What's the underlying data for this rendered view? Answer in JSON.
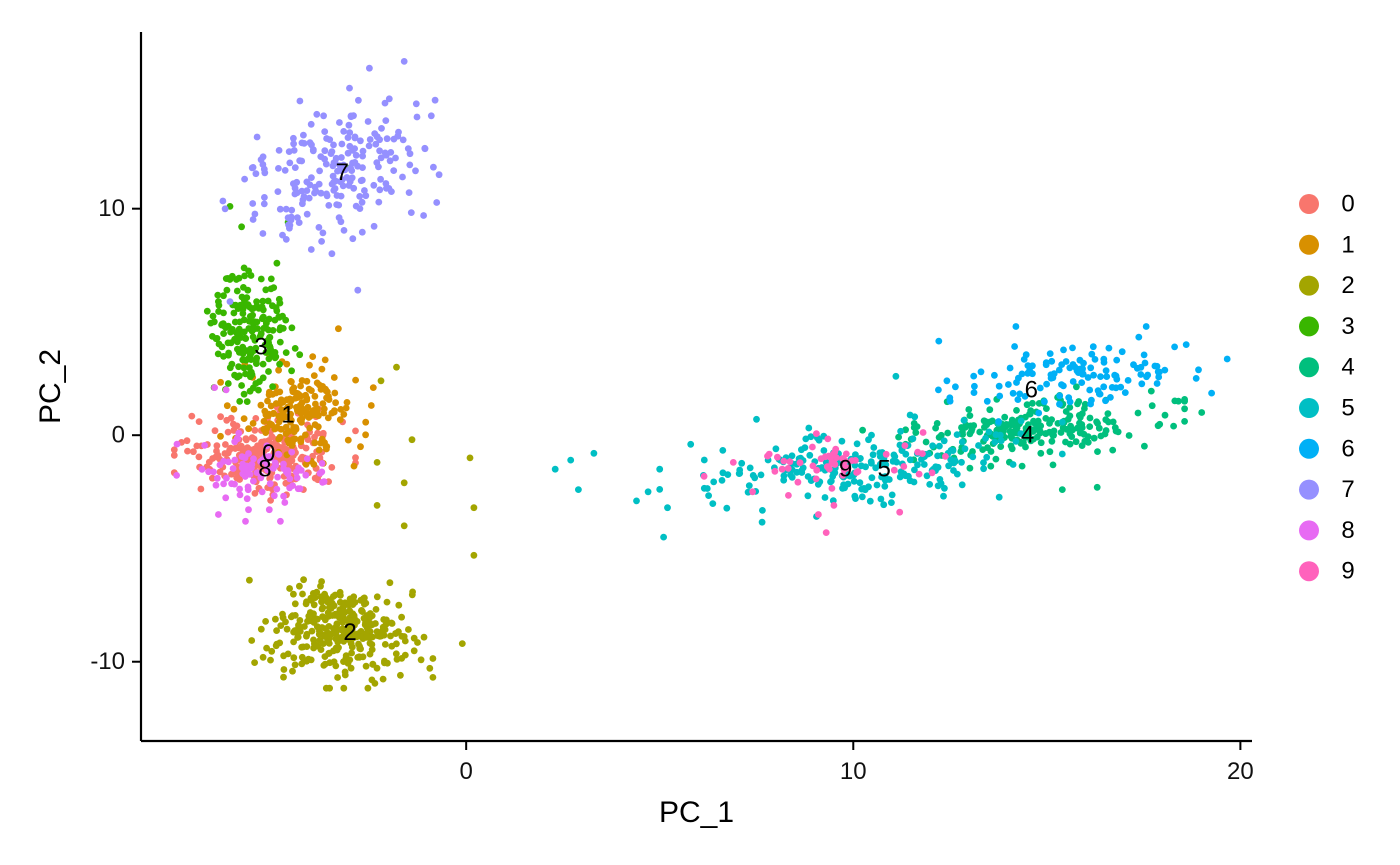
{
  "chart_data": {
    "type": "scatter",
    "xlabel": "PC_1",
    "ylabel": "PC_2",
    "xlim": [
      -8.4,
      20.3
    ],
    "ylim": [
      -13.5,
      17.8
    ],
    "x_ticks": [
      0,
      10,
      20
    ],
    "y_ticks": [
      -10,
      0,
      10
    ],
    "x_tick_labels": [
      "0",
      "10",
      "20"
    ],
    "y_tick_labels": [
      "-10",
      "0",
      "10"
    ],
    "grid": false,
    "legend_position": "right",
    "series": [
      {
        "name": "0",
        "color": "#F8766D",
        "center": [
          -5.2,
          -0.8
        ],
        "spread": [
          0.9,
          0.8
        ],
        "count": 260,
        "label_pos": [
          -5.1,
          -0.8
        ],
        "outliers": [
          [
            -6.9,
            0.6
          ],
          [
            -7.2,
            -0.7
          ],
          [
            -6.7,
            -1.4
          ],
          [
            -3.9,
            -1.9
          ]
        ]
      },
      {
        "name": "1",
        "color": "#D89000",
        "center": [
          -4.4,
          1.0
        ],
        "spread": [
          0.75,
          0.95
        ],
        "count": 180,
        "label_pos": [
          -4.6,
          0.9
        ],
        "outliers": [
          [
            -3.3,
            4.7
          ],
          [
            -3.1,
            1.2
          ],
          [
            -2.4,
            2.1
          ],
          [
            -3.6,
            -0.5
          ],
          [
            -5.1,
            3.6
          ]
        ]
      },
      {
        "name": "2",
        "color": "#A3A500",
        "center": [
          -3.2,
          -8.7
        ],
        "spread": [
          0.9,
          0.95
        ],
        "count": 320,
        "label_pos": [
          -3.0,
          -8.7
        ],
        "outliers": [
          [
            -5.6,
            -6.4
          ],
          [
            -2.3,
            -3.1
          ],
          [
            -1.4,
            -0.2
          ],
          [
            0.1,
            -1.0
          ],
          [
            -1.6,
            -2.1
          ],
          [
            0.2,
            -3.2
          ],
          [
            0.2,
            -5.3
          ],
          [
            -2.2,
            2.4
          ],
          [
            -1.8,
            3.0
          ],
          [
            -2.3,
            -1.2
          ],
          [
            -1.6,
            -4.0
          ],
          [
            -0.1,
            -9.2
          ],
          [
            -1.7,
            -10.6
          ]
        ]
      },
      {
        "name": "3",
        "color": "#39B600",
        "center": [
          -5.6,
          4.5
        ],
        "spread": [
          0.5,
          1.3
        ],
        "count": 200,
        "label_pos": [
          -5.3,
          3.9
        ],
        "outliers": [
          [
            -6.1,
            10.1
          ],
          [
            -5.8,
            9.2
          ],
          [
            -6.4,
            5.9
          ],
          [
            -4.6,
            9.4
          ],
          [
            -3.0,
            11.8
          ]
        ]
      },
      {
        "name": "4",
        "color": "#00BF7D",
        "center": [
          14.4,
          0.2
        ],
        "spread": [
          1.6,
          0.65
        ],
        "count": 230,
        "label_pos": [
          14.5,
          0.0
        ],
        "outliers": [
          [
            19.0,
            1.0
          ],
          [
            12.6,
            -1.0
          ],
          [
            15.4,
            -2.4
          ],
          [
            18.4,
            1.5
          ],
          [
            16.3,
            -2.3
          ]
        ]
      },
      {
        "name": "5",
        "color": "#00BFC4",
        "center": [
          10.2,
          -1.3
        ],
        "spread": [
          2.0,
          0.8
        ],
        "count": 240,
        "label_pos": [
          10.8,
          -1.5
        ],
        "outliers": [
          [
            2.3,
            -1.5
          ],
          [
            2.7,
            -1.1
          ],
          [
            2.9,
            -2.4
          ],
          [
            3.3,
            -0.8
          ],
          [
            4.4,
            -2.9
          ],
          [
            5.1,
            -4.5
          ],
          [
            4.7,
            -2.5
          ],
          [
            5.2,
            -3.2
          ],
          [
            5.8,
            -0.4
          ],
          [
            7.5,
            0.7
          ],
          [
            11.1,
            2.6
          ]
        ]
      },
      {
        "name": "6",
        "color": "#00B0F6",
        "center": [
          15.5,
          2.6
        ],
        "spread": [
          1.6,
          0.75
        ],
        "count": 120,
        "label_pos": [
          14.6,
          2.0
        ],
        "outliers": [
          [
            18.6,
            4.0
          ],
          [
            18.3,
            3.9
          ],
          [
            14.2,
            4.8
          ],
          [
            12.5,
            1.5
          ],
          [
            12.2,
            2.0
          ],
          [
            13.3,
            2.8
          ]
        ]
      },
      {
        "name": "7",
        "color": "#9590FF",
        "center": [
          -3.3,
          11.6
        ],
        "spread": [
          1.1,
          1.45
        ],
        "count": 210,
        "label_pos": [
          -3.2,
          11.6
        ],
        "outliers": [
          [
            -1.6,
            16.5
          ],
          [
            -2.5,
            16.2
          ],
          [
            -0.9,
            14.1
          ],
          [
            -0.7,
            11.5
          ],
          [
            -1.1,
            9.7
          ],
          [
            -6.1,
            5.9
          ],
          [
            -2.8,
            6.4
          ],
          [
            -4.0,
            8.2
          ]
        ]
      },
      {
        "name": "8",
        "color": "#E76BF3",
        "center": [
          -5.4,
          -1.6
        ],
        "spread": [
          0.8,
          0.65
        ],
        "count": 90,
        "label_pos": [
          -5.2,
          -1.5
        ],
        "outliers": [
          [
            -6.4,
            -3.5
          ],
          [
            -5.7,
            -3.8
          ],
          [
            -4.8,
            -3.8
          ],
          [
            -6.5,
            2.1
          ],
          [
            -6.2,
            2.0
          ]
        ]
      },
      {
        "name": "9",
        "color": "#FF62BC",
        "center": [
          9.0,
          -1.5
        ],
        "spread": [
          1.3,
          0.6
        ],
        "count": 55,
        "label_pos": [
          9.8,
          -1.5
        ],
        "outliers": [
          [
            9.1,
            -3.5
          ],
          [
            9.5,
            -3.1
          ],
          [
            9.3,
            -4.3
          ],
          [
            11.2,
            -3.4
          ],
          [
            6.9,
            -1.2
          ],
          [
            7.4,
            -2.5
          ]
        ]
      }
    ]
  }
}
